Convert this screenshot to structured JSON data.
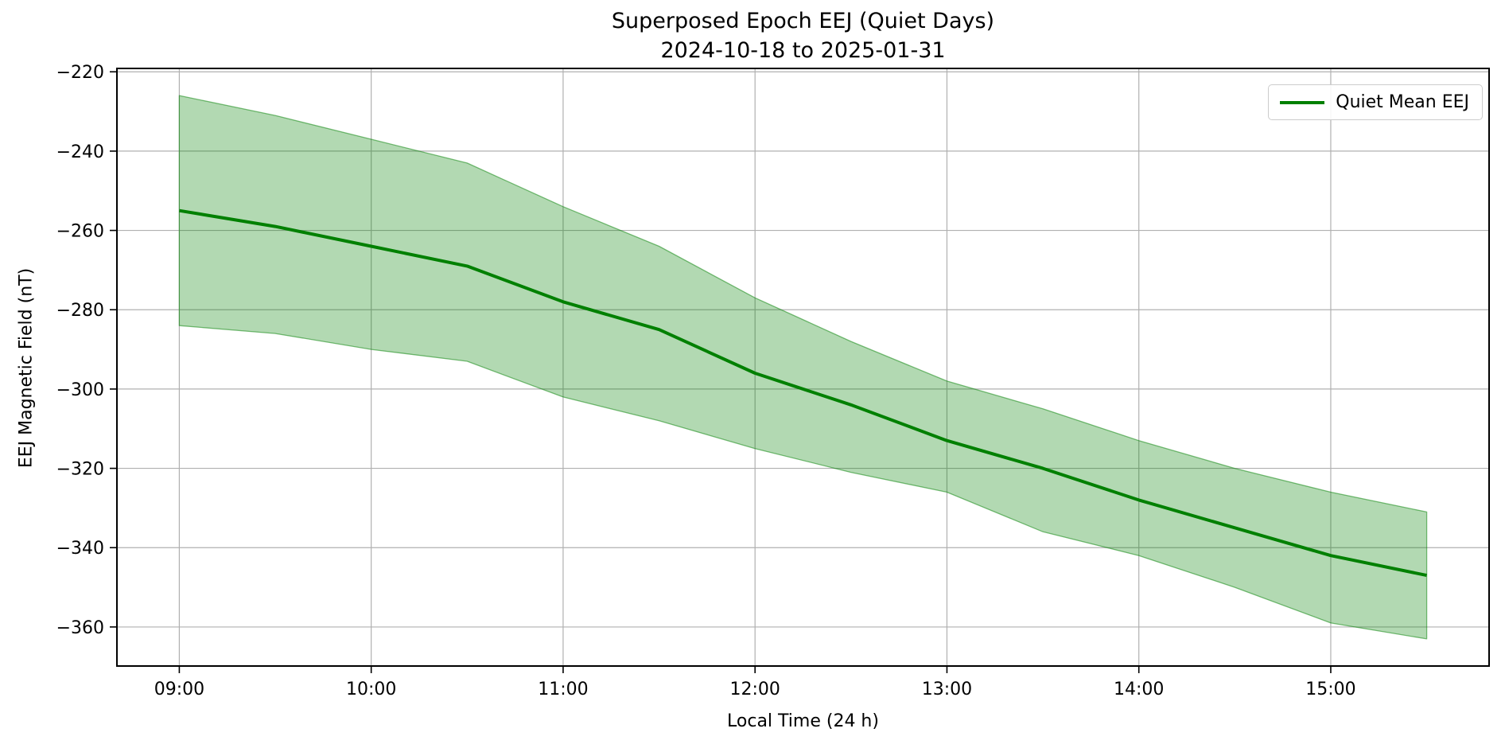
{
  "chart_data": {
    "type": "line",
    "title": "Superposed Epoch EEJ (Quiet Days)",
    "subtitle": "2024-10-18 to 2025-01-31",
    "xlabel": "Local Time (24 h)",
    "ylabel": "EEJ Magnetic Field (nT)",
    "x_hours": [
      9.0,
      9.5,
      10.0,
      10.5,
      11.0,
      11.5,
      12.0,
      12.5,
      13.0,
      13.5,
      14.0,
      14.5,
      15.0,
      15.5
    ],
    "x_times": [
      "09:00",
      "09:30",
      "10:00",
      "10:30",
      "11:00",
      "11:30",
      "12:00",
      "12:30",
      "13:00",
      "13:30",
      "14:00",
      "14:30",
      "15:00",
      "15:30"
    ],
    "series": [
      {
        "name": "Quiet Mean EEJ",
        "role": "mean",
        "color": "#008000",
        "values": [
          -255,
          -259,
          -264,
          -269,
          -278,
          -285,
          -296,
          -304,
          -313,
          -320,
          -328,
          -335,
          -342,
          -347
        ]
      },
      {
        "name": "envelope upper",
        "role": "band-upper",
        "values": [
          -226,
          -231,
          -237,
          -243,
          -254,
          -264,
          -277,
          -288,
          -298,
          -305,
          -313,
          -320,
          -326,
          -331
        ]
      },
      {
        "name": "envelope lower",
        "role": "band-lower",
        "values": [
          -284,
          -286,
          -290,
          -293,
          -302,
          -308,
          -315,
          -321,
          -326,
          -336,
          -342,
          -350,
          -359,
          -363
        ]
      }
    ],
    "band_fill_color": "rgba(0,128,0,0.30)",
    "band_edge_color": "rgba(0,128,0,0.50)",
    "line_color": "#008000",
    "grid": true,
    "grid_color": "#b0b0b0",
    "x_ticks": [
      {
        "hour": 9,
        "label": "09:00"
      },
      {
        "hour": 10,
        "label": "10:00"
      },
      {
        "hour": 11,
        "label": "11:00"
      },
      {
        "hour": 12,
        "label": "12:00"
      },
      {
        "hour": 13,
        "label": "13:00"
      },
      {
        "hour": 14,
        "label": "14:00"
      },
      {
        "hour": 15,
        "label": "15:00"
      }
    ],
    "y_ticks": [
      {
        "value": -220,
        "label": "−220"
      },
      {
        "value": -240,
        "label": "−240"
      },
      {
        "value": -260,
        "label": "−260"
      },
      {
        "value": -280,
        "label": "−280"
      },
      {
        "value": -300,
        "label": "−300"
      },
      {
        "value": -320,
        "label": "−320"
      },
      {
        "value": -340,
        "label": "−340"
      },
      {
        "value": -360,
        "label": "−360"
      }
    ],
    "xlim": [
      8.675,
      15.825
    ],
    "ylim": [
      -369.85,
      -219.15
    ],
    "legend": {
      "position": "upper right",
      "entries": [
        {
          "label": "Quiet Mean EEJ",
          "color": "#008000"
        }
      ]
    }
  }
}
